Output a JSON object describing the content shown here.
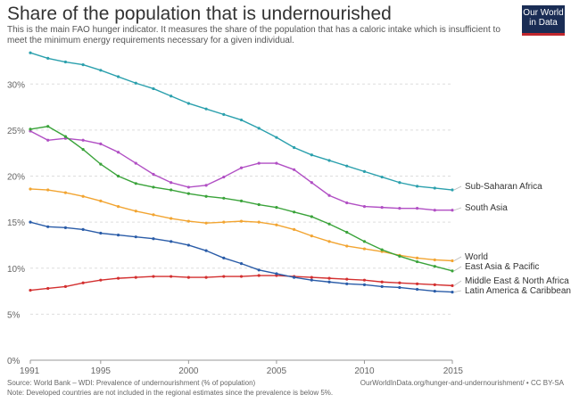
{
  "header": {
    "title": "Share of the population that is undernourished",
    "subtitle": "This is the main FAO hunger indicator. It measures the share of the population that has a caloric intake which is insufficient to meet the minimum energy requirements necessary for a given individual."
  },
  "logo": {
    "line1": "Our World",
    "line2": "in Data"
  },
  "footer": {
    "source": "Source: World Bank – WDI: Prevalence of undernourishment (% of population)",
    "note": "Note: Developed countries are not included in the regional estimates since the prevalence is below 5%.",
    "url": "OurWorldInData.org/hunger-and-undernourishment/ • CC BY-SA"
  },
  "chart_data": {
    "type": "line",
    "title": "Share of the population that is undernourished",
    "x": [
      1991,
      1992,
      1993,
      1994,
      1995,
      1996,
      1997,
      1998,
      1999,
      2000,
      2001,
      2002,
      2003,
      2004,
      2005,
      2006,
      2007,
      2008,
      2009,
      2010,
      2011,
      2012,
      2013,
      2014,
      2015
    ],
    "xticks": [
      1991,
      1995,
      2000,
      2005,
      2010,
      2015
    ],
    "yticks": [
      0,
      5,
      10,
      15,
      20,
      25,
      30
    ],
    "ytick_labels": [
      "0%",
      "5%",
      "10%",
      "15%",
      "20%",
      "25%",
      "30%"
    ],
    "xlim": [
      1991,
      2015
    ],
    "ylim": [
      0,
      34
    ],
    "grid": true,
    "series": [
      {
        "name": "Sub-Saharan Africa",
        "color": "#2ba0ad",
        "values": [
          33.4,
          32.8,
          32.4,
          32.1,
          31.5,
          30.8,
          30.1,
          29.5,
          28.7,
          27.9,
          27.3,
          26.7,
          26.1,
          25.2,
          24.2,
          23.1,
          22.3,
          21.7,
          21.1,
          20.5,
          19.9,
          19.3,
          18.9,
          18.7,
          18.5
        ]
      },
      {
        "name": "South Asia",
        "color": "#b14fc4",
        "values": [
          24.9,
          23.9,
          24.1,
          23.9,
          23.5,
          22.6,
          21.4,
          20.2,
          19.3,
          18.8,
          19.0,
          19.9,
          20.9,
          21.4,
          21.4,
          20.7,
          19.3,
          17.9,
          17.1,
          16.7,
          16.6,
          16.5,
          16.5,
          16.3,
          16.3
        ]
      },
      {
        "name": "World",
        "color": "#f2a532",
        "values": [
          18.6,
          18.5,
          18.2,
          17.8,
          17.3,
          16.7,
          16.2,
          15.8,
          15.4,
          15.1,
          14.9,
          15.0,
          15.1,
          15.0,
          14.7,
          14.2,
          13.5,
          12.9,
          12.4,
          12.1,
          11.8,
          11.4,
          11.1,
          10.9,
          10.8
        ]
      },
      {
        "name": "East Asia & Pacific",
        "color": "#3aa33a",
        "values": [
          25.1,
          25.4,
          24.3,
          22.9,
          21.3,
          20.0,
          19.2,
          18.8,
          18.5,
          18.1,
          17.8,
          17.6,
          17.3,
          16.9,
          16.6,
          16.1,
          15.6,
          14.8,
          13.9,
          12.9,
          12.0,
          11.3,
          10.7,
          10.2,
          9.7
        ]
      },
      {
        "name": "Middle East & North Africa",
        "color": "#d32f2f",
        "values": [
          7.6,
          7.8,
          8.0,
          8.4,
          8.7,
          8.9,
          9.0,
          9.1,
          9.1,
          9.0,
          9.0,
          9.1,
          9.1,
          9.2,
          9.2,
          9.1,
          9.0,
          8.9,
          8.8,
          8.7,
          8.5,
          8.4,
          8.3,
          8.2,
          8.1
        ]
      },
      {
        "name": "Latin America & Caribbean",
        "color": "#2a5ca8",
        "values": [
          15.0,
          14.5,
          14.4,
          14.2,
          13.8,
          13.6,
          13.4,
          13.2,
          12.9,
          12.5,
          11.9,
          11.1,
          10.5,
          9.8,
          9.4,
          9.0,
          8.7,
          8.5,
          8.3,
          8.2,
          8.0,
          7.9,
          7.7,
          7.5,
          7.4
        ]
      }
    ],
    "xlabel": "",
    "ylabel": ""
  }
}
